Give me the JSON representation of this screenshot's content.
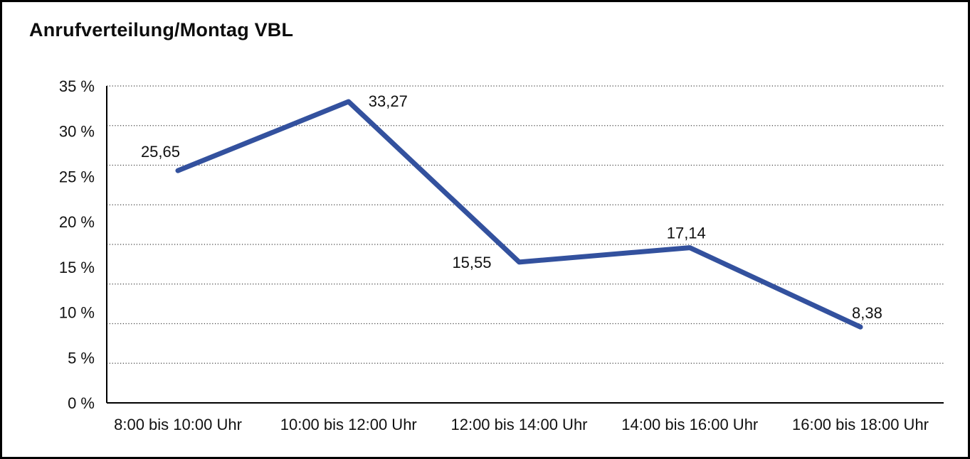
{
  "chart_data": {
    "type": "line",
    "title": "Anrufverteilung/Montag VBL",
    "categories": [
      "8:00 bis 10:00 Uhr",
      "10:00 bis 12:00 Uhr",
      "12:00 bis 14:00 Uhr",
      "14:00 bis 16:00 Uhr",
      "16:00 bis 18:00 Uhr"
    ],
    "values": [
      25.65,
      33.27,
      15.55,
      17.14,
      8.38
    ],
    "point_labels": [
      "25,65",
      "33,27",
      "15,55",
      "17,14",
      "8,38"
    ],
    "y_tick_labels": [
      "35 %",
      "30 %",
      "25 %",
      "20 %",
      "15 %",
      "10 %",
      "5 %",
      "0 %"
    ],
    "ylim": [
      0,
      35
    ],
    "y_tick_step": 5,
    "xlabel": "",
    "ylabel": "",
    "legend": "none",
    "grid": "horizontal-dotted",
    "series_name": "Anrufverteilung Montag",
    "line_color": "#33519E",
    "axis_color": "#000000",
    "gridline_color": "#3f3f3f",
    "text_color": "#111111",
    "background_color": "#ffffff",
    "border_color": "#000000"
  }
}
